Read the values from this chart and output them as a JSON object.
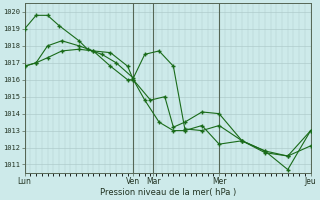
{
  "background_color": "#cdeaea",
  "grid_color": "#b0cccc",
  "line_color": "#1a6b1a",
  "xlabel": "Pression niveau de la mer( hPa )",
  "ylim": [
    1010.5,
    1020.5
  ],
  "xlim": [
    0,
    100
  ],
  "yticks": [
    1011,
    1012,
    1013,
    1014,
    1015,
    1016,
    1017,
    1018,
    1019,
    1020
  ],
  "xtick_positions": [
    0,
    38,
    45,
    68,
    100
  ],
  "xtick_labels": [
    "Lun",
    "Ven",
    "Mar",
    "Mer",
    "Jeu"
  ],
  "vline_positions": [
    0,
    38,
    45,
    68,
    100
  ],
  "series": [
    {
      "x": [
        0,
        4,
        8,
        12,
        19,
        22,
        27,
        32,
        38,
        42,
        47,
        52,
        56,
        62,
        68,
        76,
        84,
        92,
        100
      ],
      "y": [
        1019.0,
        1019.8,
        1019.8,
        1019.2,
        1018.3,
        1017.8,
        1017.5,
        1017.0,
        1016.1,
        1017.5,
        1017.7,
        1016.8,
        1013.1,
        1013.0,
        1013.3,
        1012.4,
        1011.8,
        1010.7,
        1013.0
      ]
    },
    {
      "x": [
        0,
        4,
        8,
        13,
        19,
        24,
        30,
        36,
        38,
        42,
        47,
        52,
        56,
        62,
        68,
        76,
        84,
        92,
        100
      ],
      "y": [
        1016.8,
        1017.0,
        1017.3,
        1017.7,
        1017.8,
        1017.7,
        1017.6,
        1016.8,
        1016.0,
        1014.8,
        1013.5,
        1013.0,
        1013.0,
        1013.3,
        1012.2,
        1012.4,
        1011.7,
        1011.5,
        1013.0
      ]
    },
    {
      "x": [
        0,
        4,
        8,
        13,
        19,
        24,
        30,
        36,
        38,
        44,
        49,
        52,
        56,
        62,
        68,
        76,
        84,
        92,
        100
      ],
      "y": [
        1016.8,
        1017.0,
        1018.0,
        1018.3,
        1018.0,
        1017.7,
        1016.8,
        1016.0,
        1016.0,
        1014.8,
        1015.0,
        1013.2,
        1013.5,
        1014.1,
        1014.0,
        1012.4,
        1011.8,
        1011.5,
        1012.1
      ]
    }
  ]
}
